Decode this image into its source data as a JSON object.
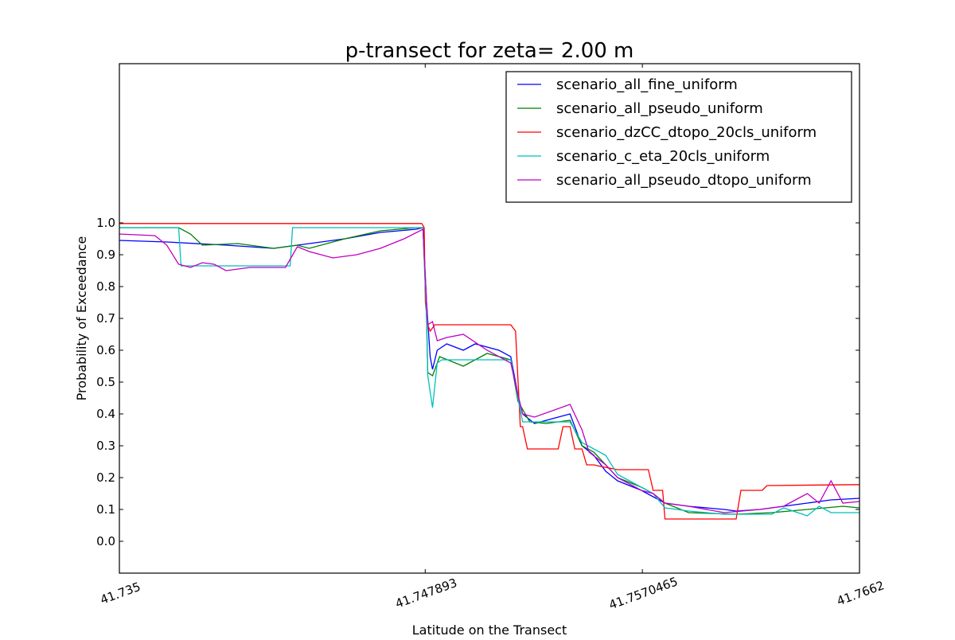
{
  "chart_data": {
    "type": "line",
    "title": "p-transect for zeta= 2.00 m",
    "xlabel": "Latitude on the Transect",
    "ylabel": "Probability of Exceedance",
    "xlim": [
      41.735,
      41.7662
    ],
    "ylim": [
      -0.1,
      1.5
    ],
    "x_ticks": [
      41.735,
      41.747893,
      41.7570465,
      41.7662
    ],
    "x_tick_labels": [
      "41.735",
      "41.747893",
      "41.7570465",
      "41.7662"
    ],
    "y_ticks": [
      0.0,
      0.1,
      0.2,
      0.3,
      0.4,
      0.5,
      0.6,
      0.7,
      0.8,
      0.9,
      1.0
    ],
    "y_tick_labels": [
      "0.0",
      "0.1",
      "0.2",
      "0.3",
      "0.4",
      "0.5",
      "0.6",
      "0.7",
      "0.8",
      "0.9",
      "1.0"
    ],
    "grid": false,
    "legend_position": "top-right",
    "series": [
      {
        "name": "scenario_all_fine_uniform",
        "color": "#0000ff",
        "points": [
          [
            41.735,
            0.945
          ],
          [
            41.737,
            0.94
          ],
          [
            41.7395,
            0.93
          ],
          [
            41.7415,
            0.92
          ],
          [
            41.743,
            0.935
          ],
          [
            41.7445,
            0.95
          ],
          [
            41.746,
            0.97
          ],
          [
            41.7475,
            0.98
          ],
          [
            41.7478,
            0.985
          ],
          [
            41.74795,
            0.75
          ],
          [
            41.7481,
            0.58
          ],
          [
            41.7482,
            0.54
          ],
          [
            41.7484,
            0.6
          ],
          [
            41.7488,
            0.62
          ],
          [
            41.7495,
            0.6
          ],
          [
            41.75,
            0.62
          ],
          [
            41.751,
            0.6
          ],
          [
            41.7515,
            0.58
          ],
          [
            41.7518,
            0.46
          ],
          [
            41.752,
            0.4
          ],
          [
            41.7525,
            0.37
          ],
          [
            41.7535,
            0.39
          ],
          [
            41.754,
            0.4
          ],
          [
            41.7545,
            0.3
          ],
          [
            41.755,
            0.27
          ],
          [
            41.7555,
            0.22
          ],
          [
            41.756,
            0.19
          ],
          [
            41.757,
            0.16
          ],
          [
            41.7575,
            0.14
          ],
          [
            41.758,
            0.12
          ],
          [
            41.759,
            0.11
          ],
          [
            41.7605,
            0.1
          ],
          [
            41.761,
            0.095
          ],
          [
            41.762,
            0.1
          ],
          [
            41.763,
            0.11
          ],
          [
            41.764,
            0.12
          ],
          [
            41.765,
            0.13
          ],
          [
            41.7662,
            0.135
          ]
        ]
      },
      {
        "name": "scenario_all_pseudo_uniform",
        "color": "#008000",
        "points": [
          [
            41.735,
            0.985
          ],
          [
            41.7375,
            0.985
          ],
          [
            41.738,
            0.965
          ],
          [
            41.7385,
            0.93
          ],
          [
            41.74,
            0.935
          ],
          [
            41.7415,
            0.92
          ],
          [
            41.7425,
            0.93
          ],
          [
            41.743,
            0.92
          ],
          [
            41.7445,
            0.95
          ],
          [
            41.746,
            0.975
          ],
          [
            41.7475,
            0.985
          ],
          [
            41.7478,
            0.985
          ],
          [
            41.74795,
            0.7
          ],
          [
            41.748,
            0.53
          ],
          [
            41.7482,
            0.52
          ],
          [
            41.7485,
            0.58
          ],
          [
            41.7495,
            0.55
          ],
          [
            41.7505,
            0.59
          ],
          [
            41.7515,
            0.57
          ],
          [
            41.7518,
            0.44
          ],
          [
            41.7523,
            0.375
          ],
          [
            41.753,
            0.37
          ],
          [
            41.754,
            0.38
          ],
          [
            41.7545,
            0.3
          ],
          [
            41.755,
            0.28
          ],
          [
            41.7555,
            0.24
          ],
          [
            41.756,
            0.2
          ],
          [
            41.757,
            0.17
          ],
          [
            41.7575,
            0.15
          ],
          [
            41.758,
            0.12
          ],
          [
            41.759,
            0.09
          ],
          [
            41.761,
            0.085
          ],
          [
            41.7625,
            0.09
          ],
          [
            41.764,
            0.1
          ],
          [
            41.7655,
            0.11
          ],
          [
            41.7662,
            0.105
          ]
        ]
      },
      {
        "name": "scenario_dzCC_dtopo_20cls_uniform",
        "color": "#ff0000",
        "points": [
          [
            41.735,
            0.998
          ],
          [
            41.74775,
            0.998
          ],
          [
            41.74785,
            0.985
          ],
          [
            41.7479,
            0.75
          ],
          [
            41.748,
            0.68
          ],
          [
            41.7481,
            0.66
          ],
          [
            41.7483,
            0.68
          ],
          [
            41.7515,
            0.68
          ],
          [
            41.7517,
            0.66
          ],
          [
            41.7519,
            0.36
          ],
          [
            41.752,
            0.36
          ],
          [
            41.7522,
            0.29
          ],
          [
            41.7535,
            0.29
          ],
          [
            41.7537,
            0.36
          ],
          [
            41.754,
            0.36
          ],
          [
            41.7542,
            0.29
          ],
          [
            41.7545,
            0.29
          ],
          [
            41.7547,
            0.24
          ],
          [
            41.755,
            0.24
          ],
          [
            41.7553,
            0.235
          ],
          [
            41.756,
            0.225
          ],
          [
            41.7573,
            0.225
          ],
          [
            41.7575,
            0.16
          ],
          [
            41.7579,
            0.16
          ],
          [
            41.758,
            0.07
          ],
          [
            41.761,
            0.07
          ],
          [
            41.7612,
            0.16
          ],
          [
            41.7621,
            0.16
          ],
          [
            41.7623,
            0.175
          ],
          [
            41.7662,
            0.178
          ]
        ]
      },
      {
        "name": "scenario_c_eta_20cls_uniform",
        "color": "#00bfbf",
        "points": [
          [
            41.735,
            0.985
          ],
          [
            41.7375,
            0.985
          ],
          [
            41.7376,
            0.865
          ],
          [
            41.7422,
            0.865
          ],
          [
            41.7423,
            0.985
          ],
          [
            41.7478,
            0.985
          ],
          [
            41.74795,
            0.7
          ],
          [
            41.748,
            0.52
          ],
          [
            41.7482,
            0.42
          ],
          [
            41.7484,
            0.56
          ],
          [
            41.7486,
            0.57
          ],
          [
            41.7515,
            0.57
          ],
          [
            41.7518,
            0.45
          ],
          [
            41.752,
            0.375
          ],
          [
            41.754,
            0.375
          ],
          [
            41.7545,
            0.31
          ],
          [
            41.7555,
            0.27
          ],
          [
            41.756,
            0.21
          ],
          [
            41.757,
            0.17
          ],
          [
            41.7575,
            0.15
          ],
          [
            41.758,
            0.105
          ],
          [
            41.759,
            0.095
          ],
          [
            41.7605,
            0.085
          ],
          [
            41.7625,
            0.085
          ],
          [
            41.763,
            0.105
          ],
          [
            41.764,
            0.08
          ],
          [
            41.7645,
            0.11
          ],
          [
            41.765,
            0.09
          ],
          [
            41.7662,
            0.09
          ]
        ]
      },
      {
        "name": "scenario_all_pseudo_dtopo_uniform",
        "color": "#bf00bf",
        "points": [
          [
            41.735,
            0.965
          ],
          [
            41.7365,
            0.96
          ],
          [
            41.737,
            0.93
          ],
          [
            41.7375,
            0.87
          ],
          [
            41.738,
            0.86
          ],
          [
            41.7385,
            0.875
          ],
          [
            41.739,
            0.87
          ],
          [
            41.7395,
            0.85
          ],
          [
            41.7405,
            0.86
          ],
          [
            41.742,
            0.86
          ],
          [
            41.7425,
            0.925
          ],
          [
            41.743,
            0.91
          ],
          [
            41.744,
            0.89
          ],
          [
            41.745,
            0.9
          ],
          [
            41.746,
            0.92
          ],
          [
            41.747,
            0.95
          ],
          [
            41.7478,
            0.98
          ],
          [
            41.74795,
            0.75
          ],
          [
            41.748,
            0.68
          ],
          [
            41.7482,
            0.69
          ],
          [
            41.7484,
            0.63
          ],
          [
            41.7488,
            0.64
          ],
          [
            41.7495,
            0.65
          ],
          [
            41.7505,
            0.6
          ],
          [
            41.7515,
            0.56
          ],
          [
            41.7518,
            0.46
          ],
          [
            41.752,
            0.4
          ],
          [
            41.7525,
            0.39
          ],
          [
            41.754,
            0.43
          ],
          [
            41.7545,
            0.35
          ],
          [
            41.7548,
            0.28
          ],
          [
            41.7555,
            0.24
          ],
          [
            41.756,
            0.2
          ],
          [
            41.757,
            0.16
          ],
          [
            41.7575,
            0.15
          ],
          [
            41.758,
            0.12
          ],
          [
            41.759,
            0.11
          ],
          [
            41.7605,
            0.09
          ],
          [
            41.762,
            0.1
          ],
          [
            41.763,
            0.11
          ],
          [
            41.7635,
            0.13
          ],
          [
            41.764,
            0.15
          ],
          [
            41.7645,
            0.12
          ],
          [
            41.765,
            0.19
          ],
          [
            41.7655,
            0.12
          ],
          [
            41.7662,
            0.125
          ]
        ]
      }
    ]
  }
}
